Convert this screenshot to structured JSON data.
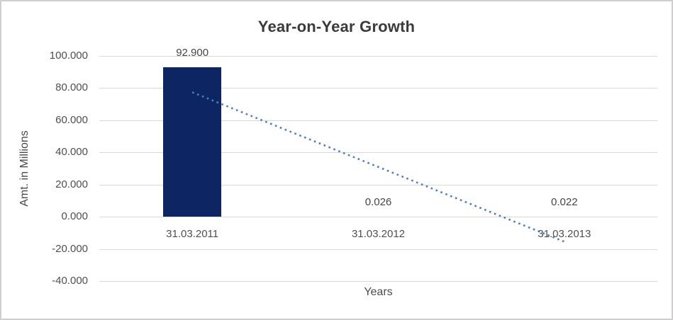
{
  "frame": {
    "background": "#ffffff",
    "border_color": "#d0cece"
  },
  "chart_data": {
    "type": "bar",
    "title": "Year-on-Year Growth",
    "xlabel": "Years",
    "ylabel": "Amt. in Millions",
    "categories": [
      "31.03.2011",
      "31.03.2012",
      "31.03.2013"
    ],
    "values": [
      92.9,
      0.026,
      0.022
    ],
    "data_labels": [
      "92.900",
      "0.026",
      "0.022"
    ],
    "ylim": [
      -40,
      100
    ],
    "ytick_step": 20,
    "ytick_labels": [
      "100.000",
      "80.000",
      "60.000",
      "40.000",
      "20.000",
      "0.000",
      "-20.000",
      "-40.000"
    ],
    "grid": true,
    "legend": "none",
    "bar_color": "#0d2562",
    "gridline_color": "#d9d9d9",
    "text_color": "#4f4f4f",
    "trendline": {
      "type": "linear",
      "style": "dotted",
      "color": "#4e7dc3",
      "start_category": "31.03.2011",
      "end_category": "31.03.2013",
      "start_value": 77.4,
      "end_value": -15.5
    }
  }
}
